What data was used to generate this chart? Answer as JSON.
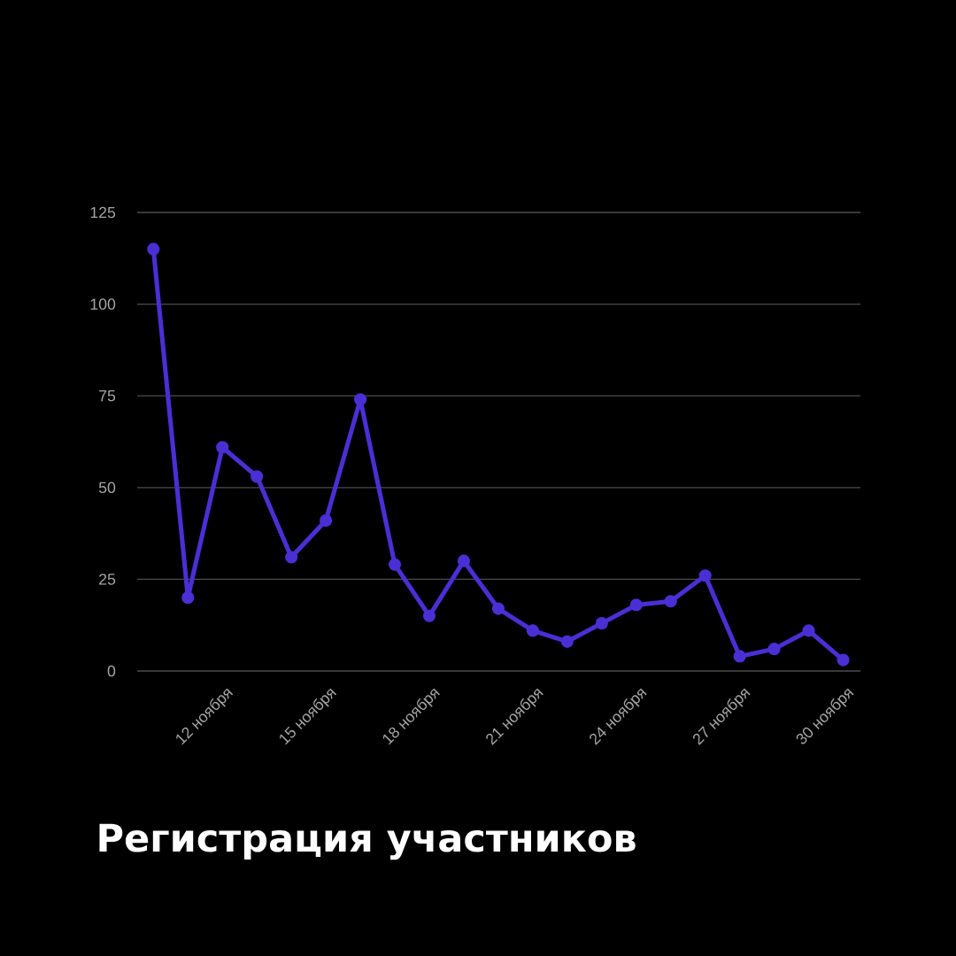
{
  "chart_data": {
    "type": "line",
    "title": "Регистрация участников",
    "categories": [
      null,
      null,
      "12 ноября",
      null,
      null,
      "15 ноября",
      null,
      null,
      "18 ноября",
      null,
      null,
      "21 ноября",
      null,
      null,
      "24 ноября",
      null,
      null,
      "27 ноября",
      null,
      null,
      "30 ноября"
    ],
    "values": [
      115,
      20,
      61,
      53,
      31,
      41,
      74,
      29,
      15,
      30,
      17,
      11,
      8,
      13,
      18,
      19,
      26,
      4,
      6,
      11,
      3
    ],
    "color": "#4a2fd4",
    "marker": "circle",
    "grid": "y",
    "ylim": [
      0,
      125
    ],
    "yticks": [
      0,
      25,
      50,
      75,
      100,
      125
    ]
  }
}
